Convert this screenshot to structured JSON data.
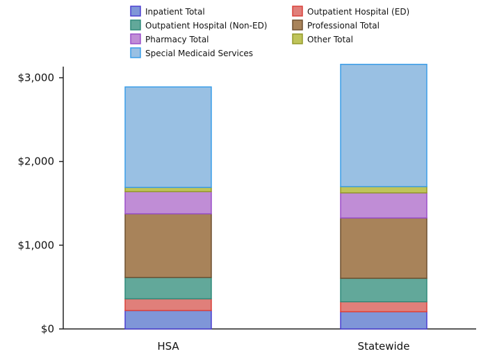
{
  "chart_data": {
    "type": "bar",
    "stacked": true,
    "title": "",
    "xlabel": "",
    "ylabel": "",
    "categories": [
      "HSA",
      "Statewide"
    ],
    "ylim": [
      0,
      3000
    ],
    "yticks": [
      {
        "value": 0,
        "label": "$0"
      },
      {
        "value": 1000,
        "label": "$1,000"
      },
      {
        "value": 2000,
        "label": "$2,000"
      },
      {
        "value": 3000,
        "label": "$3,000"
      }
    ],
    "grid": false,
    "legend_position": "top",
    "series": [
      {
        "name": "Inpatient Total",
        "values": [
          220,
          205
        ],
        "fill": "#7f96d8",
        "stroke": "#4a3fd0"
      },
      {
        "name": "Outpatient Hospital (ED)",
        "values": [
          140,
          120
        ],
        "fill": "#e07f7a",
        "stroke": "#d9403a"
      },
      {
        "name": "Outpatient Hospital (Non-ED)",
        "values": [
          255,
          280
        ],
        "fill": "#62a89a",
        "stroke": "#2f8a7a"
      },
      {
        "name": "Professional Total",
        "values": [
          760,
          720
        ],
        "fill": "#a8835a",
        "stroke": "#6d4f2f"
      },
      {
        "name": "Pharmacy Total",
        "values": [
          265,
          300
        ],
        "fill": "#c08dd6",
        "stroke": "#9a4fc8"
      },
      {
        "name": "Other Total",
        "values": [
          50,
          75
        ],
        "fill": "#bfc45a",
        "stroke": "#949a2a"
      },
      {
        "name": "Special Medicaid Services",
        "values": [
          1200,
          1460
        ],
        "fill": "#99c0e3",
        "stroke": "#3a9de8"
      }
    ]
  }
}
